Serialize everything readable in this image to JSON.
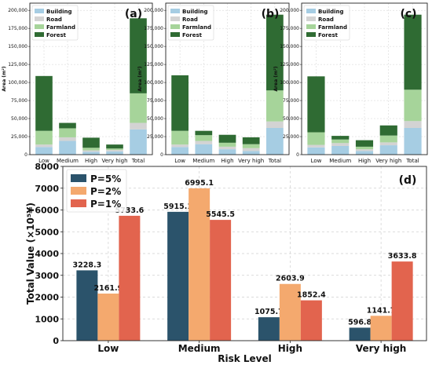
{
  "chart_data": [
    {
      "type": "bar",
      "stacked": true,
      "panel_label": "(a)",
      "categories": [
        "Low",
        "Medium",
        "High",
        "Very high",
        "Total"
      ],
      "series": [
        {
          "name": "Building",
          "values": [
            10500,
            19000,
            4000,
            4500,
            35000
          ]
        },
        {
          "name": "Road",
          "values": [
            3500,
            5000,
            2000,
            2000,
            9000
          ]
        },
        {
          "name": "Farmland",
          "values": [
            19000,
            12500,
            3500,
            2000,
            41000
          ]
        },
        {
          "name": "Forest",
          "values": [
            76000,
            7500,
            14000,
            5500,
            104000
          ]
        }
      ],
      "ylabel": "Area (m²)",
      "ylim": [
        0,
        210000
      ],
      "yticks": [
        0,
        25000,
        50000,
        75000,
        100000,
        125000,
        150000,
        175000,
        200000
      ],
      "ytick_labels": [
        "0",
        "25,000",
        "50,000",
        "75,000",
        "100,000",
        "125,000",
        "150,000",
        "175,000",
        "200,000"
      ],
      "colors": [
        "#a6cde3",
        "#d3d3d3",
        "#a6d49a",
        "#2f6b33"
      ],
      "legend": "top-left",
      "grid": true
    },
    {
      "type": "bar",
      "stacked": true,
      "panel_label": "(b)",
      "categories": [
        "Low",
        "Medium",
        "High",
        "Very high",
        "Total"
      ],
      "series": [
        {
          "name": "Building",
          "values": [
            10500,
            14500,
            7500,
            5000,
            37000
          ]
        },
        {
          "name": "Road",
          "values": [
            3500,
            4500,
            3500,
            4000,
            9000
          ]
        },
        {
          "name": "Farmland",
          "values": [
            19000,
            8000,
            5500,
            5500,
            43000
          ]
        },
        {
          "name": "Forest",
          "values": [
            77000,
            6000,
            11000,
            9500,
            105000
          ]
        }
      ],
      "ylabel": "Area (m²)",
      "ylim": [
        0,
        210000
      ],
      "colors": [
        "#a6cde3",
        "#d3d3d3",
        "#a6d49a",
        "#2f6b33"
      ],
      "legend": "top-left",
      "grid": true
    },
    {
      "type": "bar",
      "stacked": true,
      "panel_label": "(c)",
      "categories": [
        "Low",
        "Medium",
        "High",
        "Very high",
        "Total"
      ],
      "series": [
        {
          "name": "Building",
          "values": [
            10000,
            12000,
            5000,
            13000,
            37000
          ]
        },
        {
          "name": "Road",
          "values": [
            3500,
            4000,
            2500,
            4000,
            9500
          ]
        },
        {
          "name": "Farmland",
          "values": [
            17500,
            5000,
            3500,
            9500,
            43500
          ]
        },
        {
          "name": "Forest",
          "values": [
            77500,
            5000,
            9000,
            14000,
            104000
          ]
        }
      ],
      "ylabel": "Area (m²)",
      "ylim": [
        0,
        210000
      ],
      "colors": [
        "#a6cde3",
        "#d3d3d3",
        "#a6d49a",
        "#2f6b33"
      ],
      "legend": "top-left",
      "grid": true
    },
    {
      "type": "bar",
      "grouped": true,
      "panel_label": "(d)",
      "categories": [
        "Low",
        "Medium",
        "High",
        "Very high"
      ],
      "series": [
        {
          "name": "P=5%",
          "values": [
            3228.3,
            5915.1,
            1075.7,
            596.8
          ]
        },
        {
          "name": "P=2%",
          "values": [
            2161.9,
            6995.1,
            2603.9,
            1141.7
          ]
        },
        {
          "name": "P=1%",
          "values": [
            5733.6,
            5545.5,
            1852.4,
            3633.8
          ]
        }
      ],
      "xlabel": "Risk Level",
      "ylabel": "Total Value (×10⁵¥)",
      "ylim": [
        0,
        8000
      ],
      "yticks": [
        0,
        1000,
        2000,
        3000,
        4000,
        5000,
        6000,
        7000,
        8000
      ],
      "colors": [
        "#2b536b",
        "#f4a96e",
        "#e2644e"
      ],
      "legend": "top-left",
      "grid": true,
      "data_labels": true
    }
  ]
}
